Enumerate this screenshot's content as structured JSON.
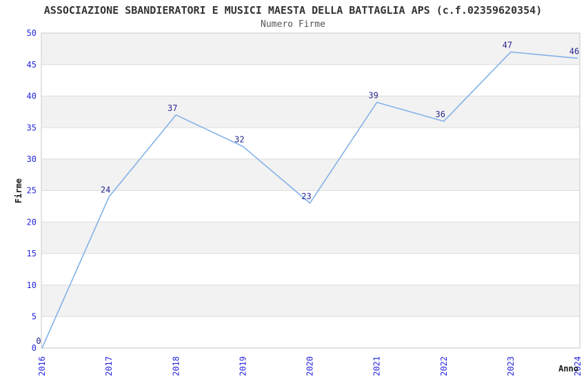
{
  "chart_data": {
    "type": "line",
    "title": "ASSOCIAZIONE SBANDIERATORI E MUSICI MAESTA DELLA BATTAGLIA APS (c.f.02359620354)",
    "subtitle": "Numero Firme",
    "xlabel": "Anno",
    "ylabel": "Firme",
    "categories": [
      "2016",
      "2017",
      "2018",
      "2019",
      "2020",
      "2021",
      "2022",
      "2023",
      "2024"
    ],
    "values": [
      0,
      24,
      37,
      32,
      23,
      39,
      36,
      47,
      46
    ],
    "ylim": [
      0,
      50
    ],
    "ytick_step": 5,
    "yticks": [
      0,
      5,
      10,
      15,
      20,
      25,
      30,
      35,
      40,
      45,
      50
    ],
    "grid": "horizontal-alternating-bands",
    "legend_position": "none",
    "markers": "none",
    "data_labels_shown": true,
    "x_tick_rotation": -90,
    "colors": {
      "line": "#82b1e8",
      "tick_label": "#2626dd",
      "data_label": "#26268f",
      "band_fill": "#f2f2f2",
      "band_fill_alt": "#ffffff",
      "gridline": "#dcdcdc",
      "plot_border": "#d9d9d9",
      "title": "#333333",
      "subtitle": "#555555",
      "axis_label": "#1a1a1a",
      "background": "#ffffff"
    }
  }
}
